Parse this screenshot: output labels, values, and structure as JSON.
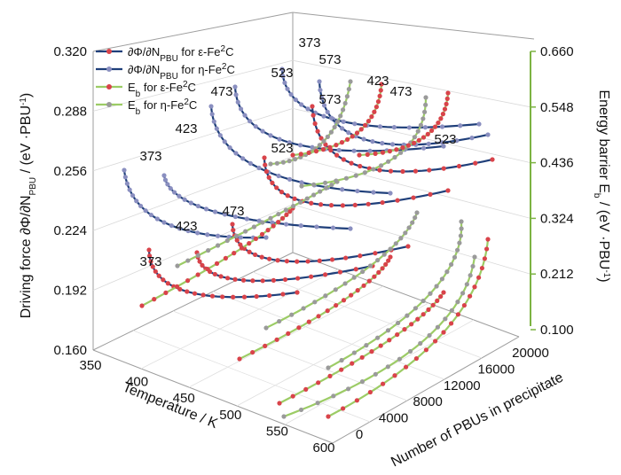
{
  "chart_data": {
    "type": "line",
    "title": "",
    "left_axis": {
      "label_parts": [
        "Driving force ",
        "∂Φ/∂N",
        "PBU",
        " / (eV ·PBU",
        "-1",
        ")"
      ],
      "ticks": [
        "0.160",
        "0.192",
        "0.224",
        "0.256",
        "0.288",
        "0.320"
      ],
      "range": [
        0.16,
        0.32
      ]
    },
    "right_axis": {
      "label_parts": [
        "Energy barrier ",
        "E",
        "b",
        " / (eV ·PBU",
        "-1",
        ")"
      ],
      "ticks": [
        "0.100",
        "0.212",
        "0.324",
        "0.436",
        "0.548",
        "0.660"
      ],
      "range": [
        0.1,
        0.66
      ]
    },
    "x_axis": {
      "label": "Temperature / K",
      "ticks": [
        "350",
        "400",
        "450",
        "500",
        "550",
        "600"
      ],
      "range": [
        350,
        600
      ]
    },
    "y_axis": {
      "label": "Number of PBUs in precipitate",
      "ticks": [
        "0",
        "4000",
        "8000",
        "12000",
        "16000",
        "20000"
      ],
      "range": [
        0,
        20000
      ]
    },
    "legend": {
      "position": "top-left",
      "items": [
        {
          "parts": [
            "∂Φ/∂N",
            "PBU",
            " for ε-Fe",
            "2",
            "C"
          ],
          "line_color": "#1f3f7a",
          "marker_color": "#d9434a"
        },
        {
          "parts": [
            "∂Φ/∂N",
            "PBU",
            " for η-Fe",
            "2",
            "C"
          ],
          "line_color": "#1f3f7a",
          "marker_color": "#8a8fc0"
        },
        {
          "parts": [
            "E",
            "b",
            " for ε-Fe",
            "2",
            "C"
          ],
          "line_color": "#9ccc65",
          "marker_color": "#d9434a"
        },
        {
          "parts": [
            "E",
            "b",
            " for η-Fe",
            "2",
            "C"
          ],
          "line_color": "#9ccc65",
          "marker_color": "#9a9a9a"
        }
      ]
    },
    "curve_labels": [
      "373",
      "423",
      "473",
      "523",
      "573"
    ],
    "series": [
      {
        "name": "∂Φ/∂NPBU for ε-Fe2C",
        "temperatures": [
          373,
          423,
          473,
          523,
          573
        ],
        "asymptote": [
          0.173,
          0.204,
          0.233,
          0.262,
          0.291
        ]
      },
      {
        "name": "∂Φ/∂NPBU for η-Fe2C",
        "temperatures": [
          373,
          423,
          473,
          523,
          573
        ],
        "asymptote": [
          0.168,
          0.198,
          0.227,
          0.256,
          0.285
        ]
      },
      {
        "name": "Eb for ε-Fe2C",
        "temperatures": [
          373,
          423,
          473,
          523,
          573
        ],
        "trend": "rising"
      },
      {
        "name": "Eb for η-Fe2C",
        "temperatures": [
          373,
          423,
          473,
          523,
          573
        ],
        "trend": "rising"
      }
    ],
    "grid": true,
    "colors": {
      "df_line": "#1f3f7a",
      "eb_line": "#9ccc65",
      "eps_marker": "#d9434a",
      "eta_marker": "#8a8fc0",
      "eta_eb_marker": "#9a9a9a",
      "right_axis": "#7cb342"
    }
  }
}
